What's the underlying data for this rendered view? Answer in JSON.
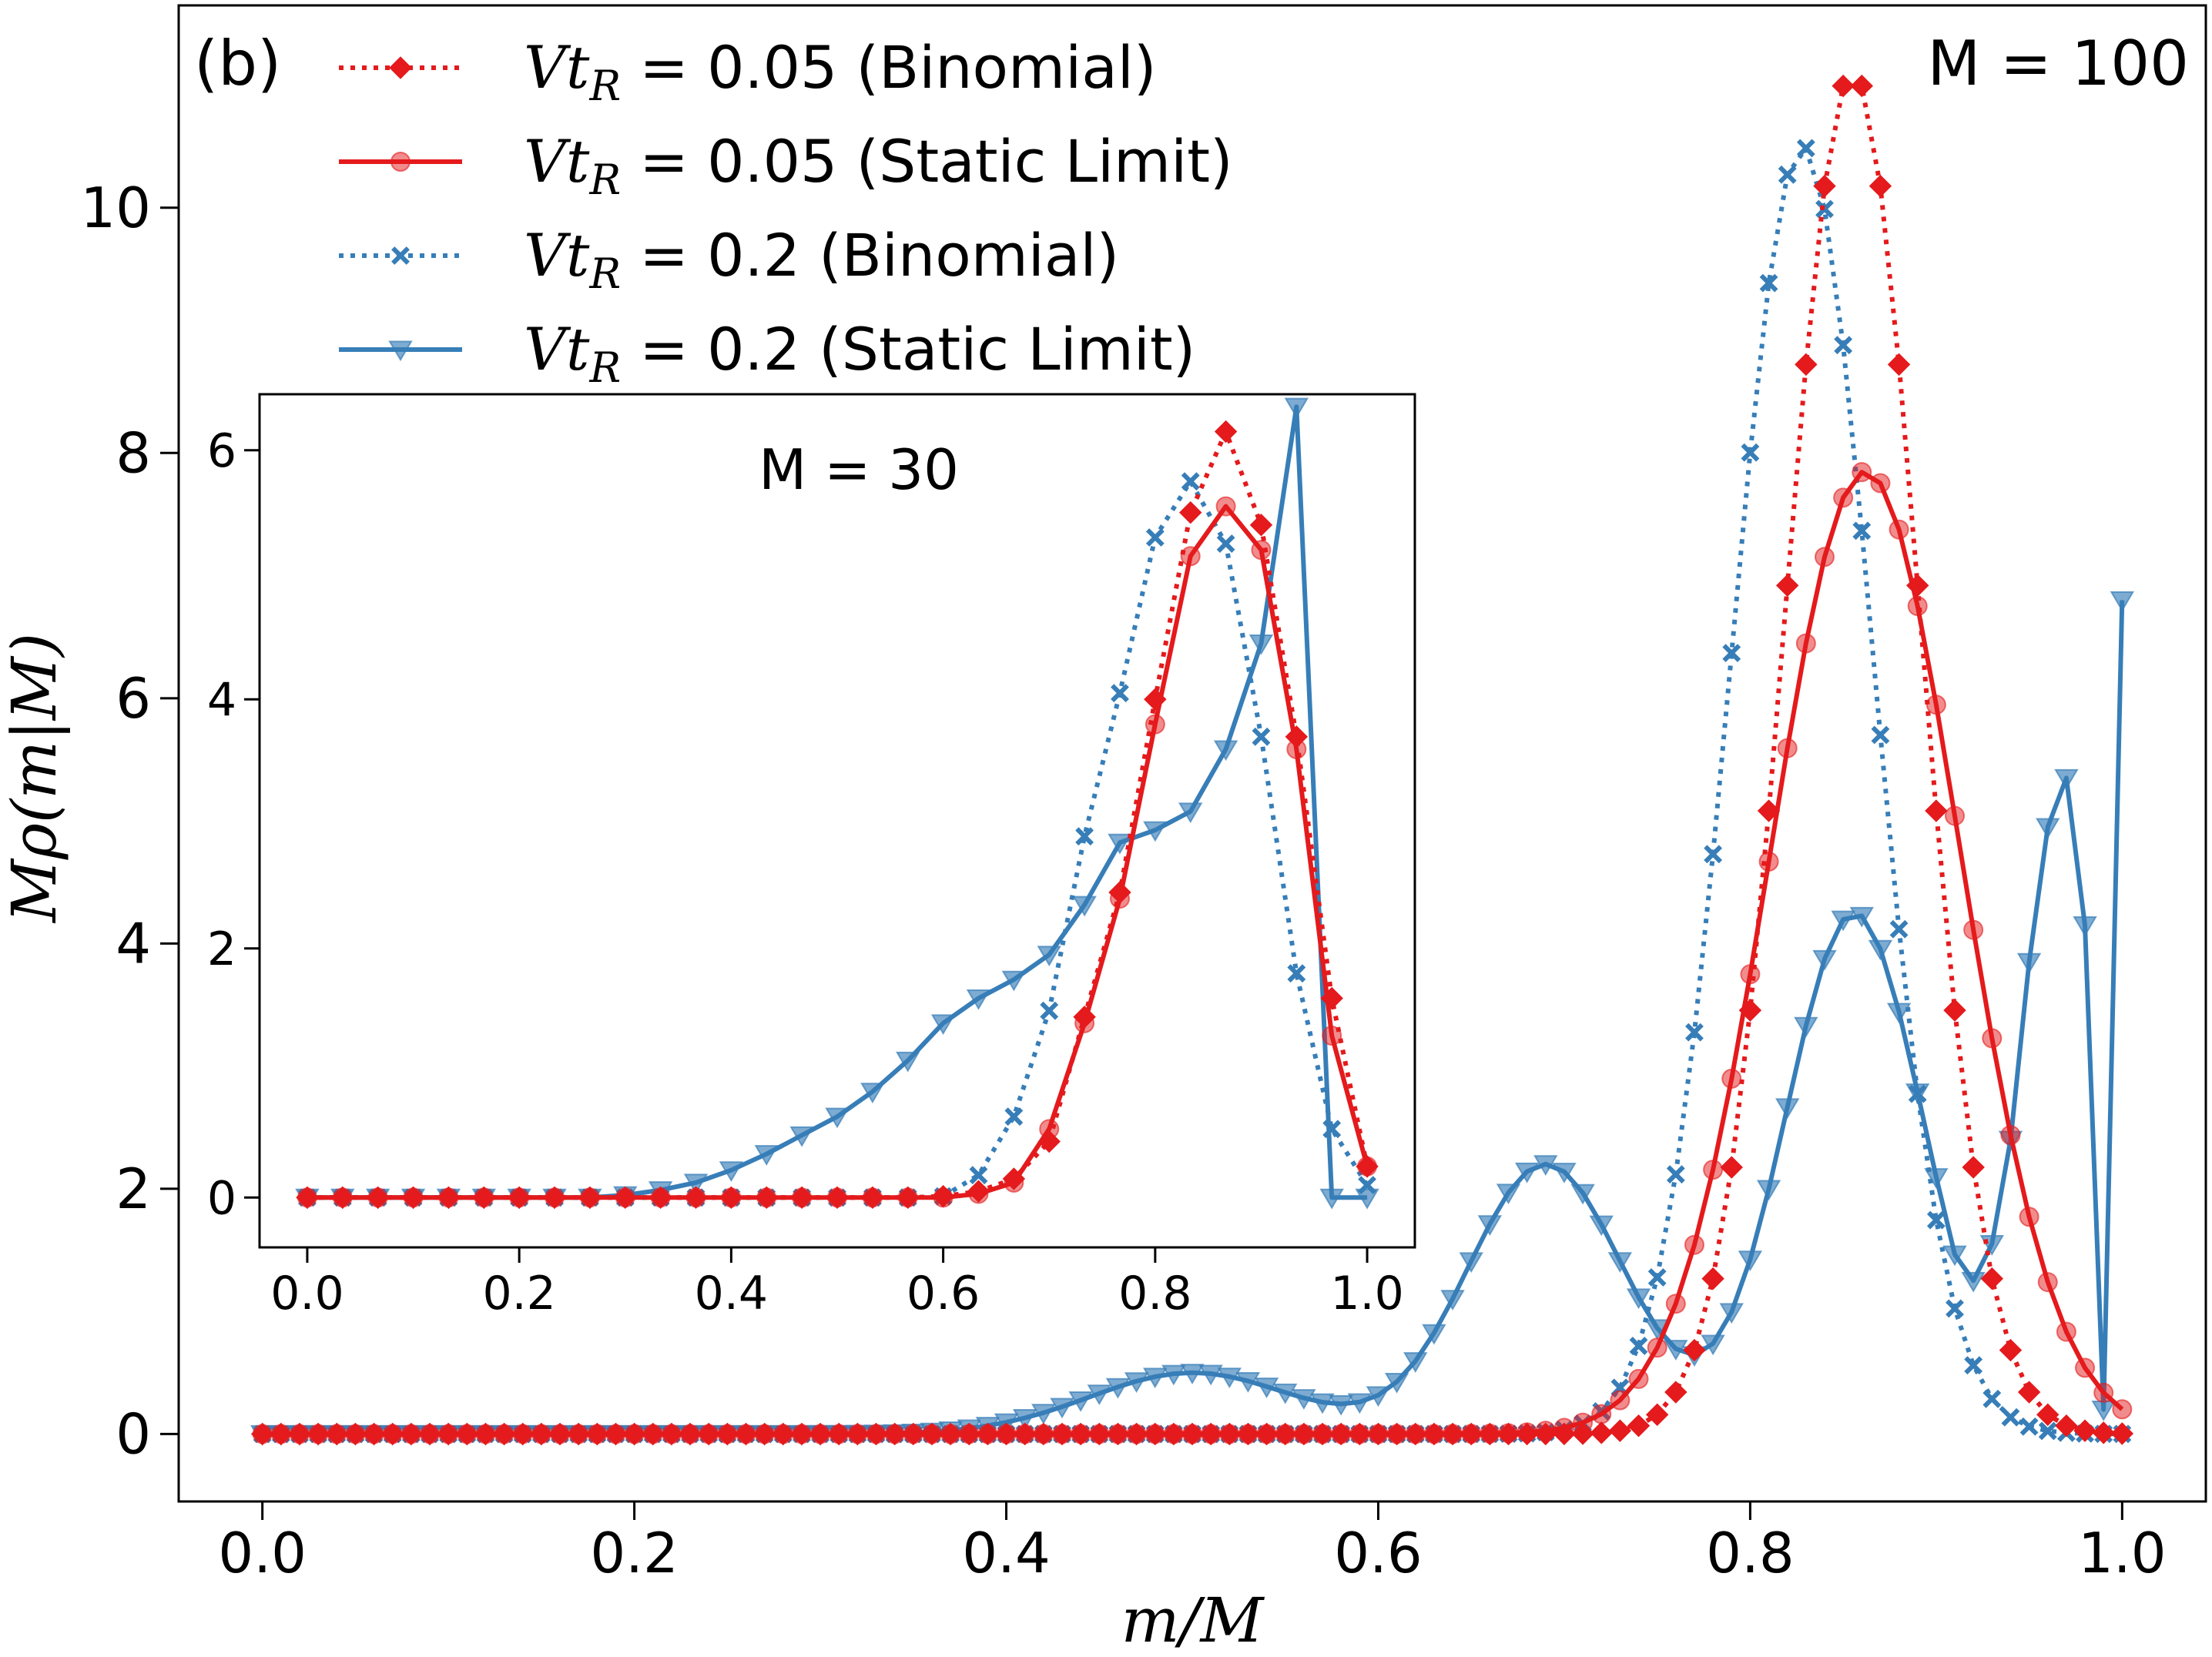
{
  "chart_data": [
    {
      "type": "line",
      "panel_label": "(b)",
      "annotation": "M = 100",
      "xlabel": "m/M",
      "ylabel": "Mρ(m|M)",
      "xlim": [
        -0.045,
        1.045
      ],
      "ylim": [
        -0.55,
        11.65
      ],
      "xticks": [
        0.0,
        0.2,
        0.4,
        0.6,
        0.8,
        1.0
      ],
      "yticks": [
        0,
        2,
        4,
        6,
        8,
        10
      ],
      "xtick_labels": [
        "0.0",
        "0.2",
        "0.4",
        "0.6",
        "0.8",
        "1.0"
      ],
      "ytick_labels": [
        "0",
        "2",
        "4",
        "6",
        "8",
        "10"
      ],
      "M": 100,
      "series": [
        {
          "name": "Vt_R = 0.05 (Binomial)",
          "color": "#e41a1c",
          "style": "dotted",
          "marker": "diamond",
          "peak": 0.855,
          "width": 0.036,
          "height": 11.1
        },
        {
          "name": "Vt_R = 0.05 (Static Limit)",
          "color": "#e41a1c",
          "style": "solid",
          "marker": "circle",
          "peak": 0.862,
          "width": 0.051,
          "height": 7.85
        },
        {
          "name": "Vt_R = 0.2 (Binomial)",
          "color": "#377eb8",
          "style": "dotted",
          "marker": "x",
          "peak": 0.828,
          "width": 0.038,
          "height": 10.5
        },
        {
          "name": "Vt_R = 0.2 (Static Limit)",
          "color": "#377eb8",
          "style": "solid",
          "marker": "triangle",
          "components": [
            [
              0.5,
              0.055,
              0.5
            ],
            [
              0.69,
              0.042,
              2.2
            ],
            [
              0.856,
              0.037,
              4.25
            ]
          ],
          "tail_x": [
            0.92,
            0.93,
            0.94,
            0.95,
            0.96,
            0.97,
            0.98,
            0.99,
            1.0
          ],
          "tail_y": [
            1.25,
            1.55,
            2.4,
            3.85,
            4.95,
            5.35,
            4.15,
            0.2,
            6.8
          ]
        }
      ]
    },
    {
      "type": "line",
      "annotation": "M = 30",
      "xlim": [
        -0.045,
        1.045
      ],
      "ylim": [
        -0.4,
        6.45
      ],
      "xticks": [
        0.0,
        0.2,
        0.4,
        0.6,
        0.8,
        1.0
      ],
      "yticks": [
        0,
        2,
        4,
        6
      ],
      "xtick_labels": [
        "0.0",
        "0.2",
        "0.4",
        "0.6",
        "0.8",
        "1.0"
      ],
      "ytick_labels": [
        "0",
        "2",
        "4",
        "6"
      ],
      "M": 30,
      "series": [
        {
          "name": "Vt_R = 0.05 (Binomial)",
          "y": [
            0,
            0,
            0,
            0,
            0,
            0,
            0,
            0,
            0,
            0,
            0,
            0,
            0,
            0,
            0,
            0,
            0,
            0,
            0.01,
            0.05,
            0.15,
            0.45,
            1.45,
            2.45,
            4.0,
            5.5,
            6.15,
            5.4,
            3.7,
            1.6,
            0.25
          ]
        },
        {
          "name": "Vt_R = 0.05 (Static Limit)",
          "y": [
            0,
            0,
            0,
            0,
            0,
            0,
            0,
            0,
            0,
            0,
            0,
            0,
            0,
            0,
            0,
            0,
            0,
            0,
            0,
            0.03,
            0.12,
            0.55,
            1.4,
            2.4,
            3.8,
            5.15,
            5.55,
            5.2,
            3.6,
            1.3,
            0.25
          ]
        },
        {
          "name": "Vt_R = 0.2 (Binomial)",
          "y": [
            0,
            0,
            0,
            0,
            0,
            0,
            0,
            0,
            0,
            0,
            0,
            0,
            0,
            0,
            0,
            0,
            0,
            0,
            0.01,
            0.18,
            0.65,
            1.5,
            2.9,
            4.05,
            5.3,
            5.75,
            5.25,
            3.7,
            1.8,
            0.55,
            0.1
          ]
        },
        {
          "name": "Vt_R = 0.2 (Static Limit)",
          "y": [
            0,
            0,
            0,
            0,
            0,
            0,
            0,
            0,
            0,
            0.02,
            0.06,
            0.12,
            0.22,
            0.35,
            0.5,
            0.65,
            0.85,
            1.1,
            1.4,
            1.6,
            1.75,
            1.95,
            2.35,
            2.85,
            2.95,
            3.1,
            3.6,
            4.45,
            6.35,
            0,
            0
          ]
        }
      ]
    }
  ],
  "legend": {
    "items": [
      {
        "math": "Vt",
        "sub": "R",
        "rest": " = 0.05 (Binomial)"
      },
      {
        "math": "Vt",
        "sub": "R",
        "rest": " = 0.05 (Static Limit)"
      },
      {
        "math": "Vt",
        "sub": "R",
        "rest": " = 0.2 (Binomial)"
      },
      {
        "math": "Vt",
        "sub": "R",
        "rest": " = 0.2 (Static Limit)"
      }
    ]
  },
  "labels": {
    "panel": "(b)",
    "main_annotation": "M = 100",
    "inset_annotation": "M = 30",
    "xlabel": "m/M",
    "ylabel": "Mρ(m|M)"
  }
}
